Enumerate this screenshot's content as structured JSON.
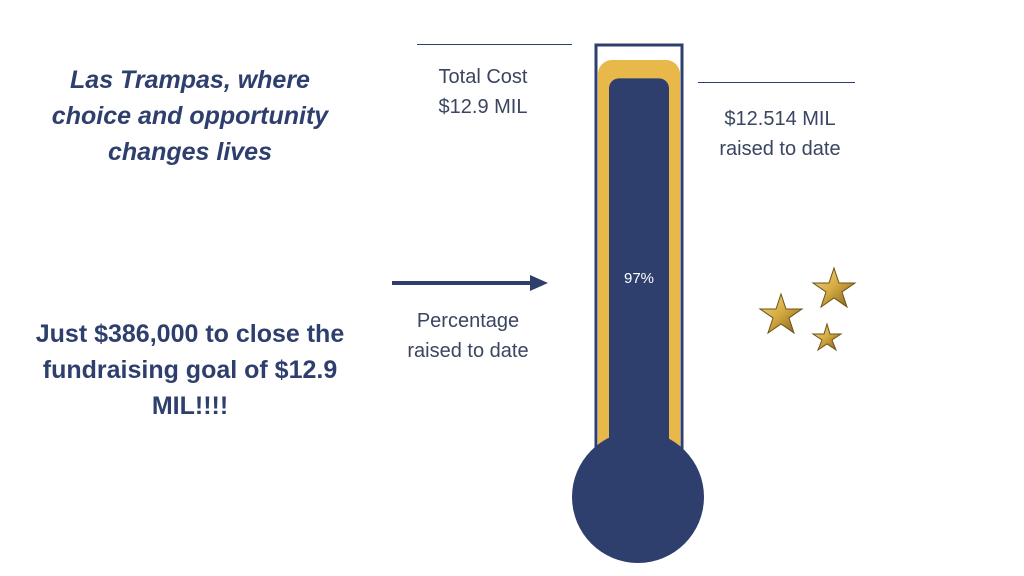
{
  "tagline": "Las Trampas, where choice and opportunity changes lives",
  "goal_message": "Just $386,000 to close the fundraising goal of $12.9 MIL!!!!",
  "total_cost": {
    "line1": "Total Cost",
    "line2": "$12.9 MIL"
  },
  "raised": {
    "line1": "$12.514 MIL",
    "line2": "raised to date"
  },
  "percentage_label": {
    "line1": "Percentage",
    "line2": "raised to date"
  },
  "thermometer": {
    "percent_text": "97%",
    "fill_fraction": 0.97
  },
  "colors": {
    "navy": "#2e3f6e",
    "gold": "#e8b84a",
    "star": "#c9a64a"
  },
  "icons": [
    "right-arrow-icon",
    "star-icon"
  ]
}
